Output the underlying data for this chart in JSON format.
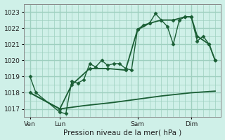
{
  "xlabel": "Pression niveau de la mer( hPa )",
  "bg_color": "#cff0e8",
  "grid_color": "#9ecfbf",
  "line_color": "#1a5e35",
  "ylim": [
    1016.5,
    1023.5
  ],
  "xlim": [
    0,
    66
  ],
  "day_labels": [
    "Ven",
    "Lun",
    "Sam",
    "Dim"
  ],
  "day_positions": [
    2,
    12,
    38,
    56
  ],
  "yticks": [
    1017,
    1018,
    1019,
    1020,
    1021,
    1022,
    1023
  ],
  "line_zigzag_x": [
    2,
    4,
    12,
    14,
    16,
    18,
    20,
    22,
    24,
    26,
    28,
    30,
    32,
    34,
    36,
    38,
    40,
    42,
    44,
    46,
    48,
    50,
    52,
    54,
    56,
    58,
    60,
    62,
    64
  ],
  "line_zigzag_y": [
    1019.0,
    1018.0,
    1016.8,
    1016.7,
    1018.7,
    1018.6,
    1018.8,
    1019.8,
    1019.6,
    1020.0,
    1019.7,
    1019.8,
    1019.8,
    1019.5,
    1019.4,
    1021.9,
    1022.2,
    1022.3,
    1022.9,
    1022.5,
    1022.1,
    1021.0,
    1022.5,
    1022.7,
    1022.7,
    1021.2,
    1021.5,
    1021.0,
    1020.0
  ],
  "line_smooth_x": [
    2,
    12,
    16,
    22,
    28,
    34,
    38,
    42,
    46,
    50,
    54,
    56,
    58,
    62,
    64
  ],
  "line_smooth_y": [
    1018.0,
    1017.0,
    1018.5,
    1019.5,
    1019.5,
    1019.4,
    1021.9,
    1022.3,
    1022.5,
    1022.5,
    1022.7,
    1022.7,
    1021.5,
    1021.0,
    1020.0
  ],
  "line_trend_x": [
    2,
    12,
    20,
    30,
    38,
    46,
    56,
    64
  ],
  "line_trend_y": [
    1018.0,
    1017.0,
    1017.2,
    1017.4,
    1017.6,
    1017.8,
    1018.0,
    1018.1
  ]
}
